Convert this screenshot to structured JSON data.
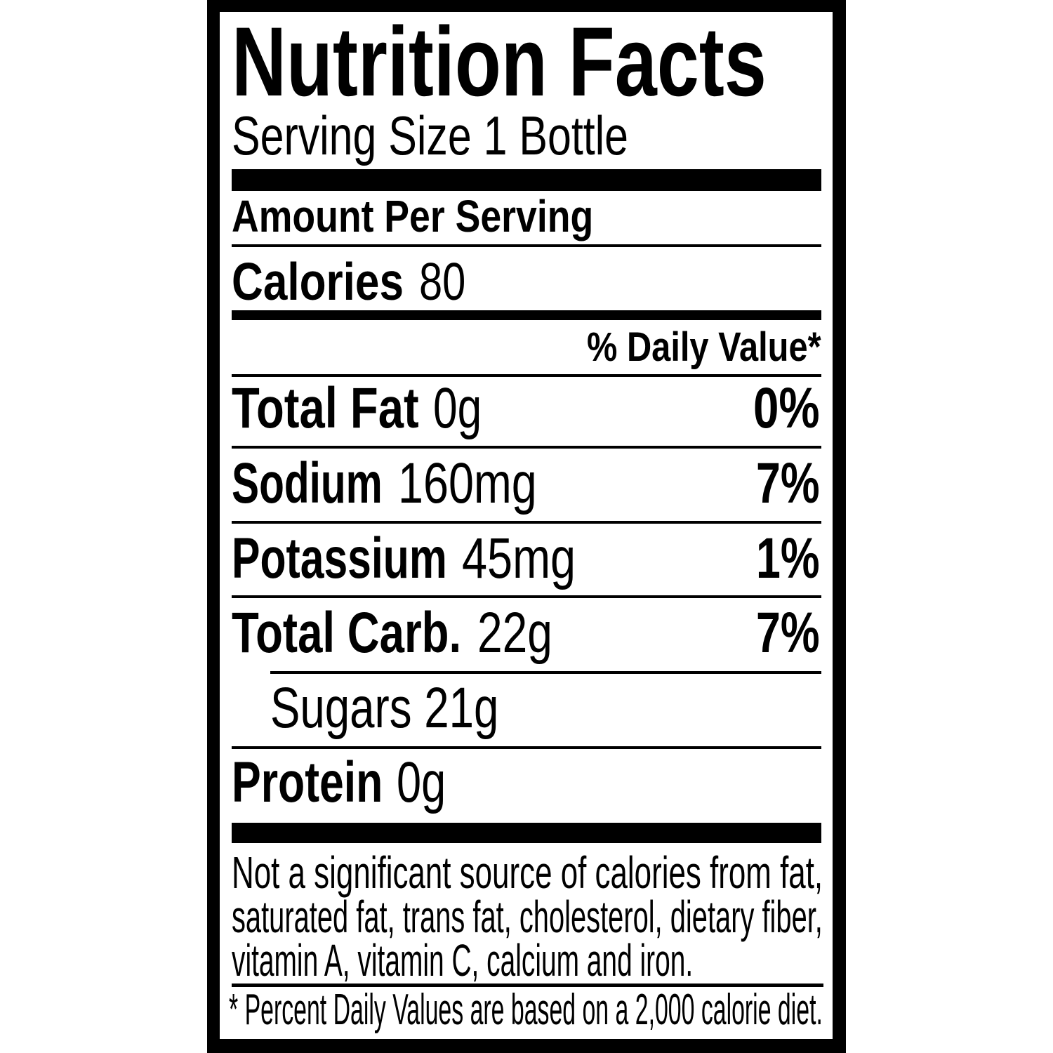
{
  "label": {
    "title": "Nutrition Facts",
    "serving_size": "Serving Size 1 Bottle",
    "amount_per_serving": "Amount Per Serving",
    "calories": {
      "label": "Calories",
      "value": "80"
    },
    "daily_value_header": "% Daily Value*",
    "nutrients": [
      {
        "label": "Total Fat",
        "amount": "0g",
        "dv": "0%"
      },
      {
        "label": "Sodium",
        "amount": "160mg",
        "dv": "7%"
      },
      {
        "label": "Potassium",
        "amount": "45mg",
        "dv": "1%"
      },
      {
        "label": "Total Carb.",
        "amount": "22g",
        "dv": "7%"
      }
    ],
    "sugars": "Sugars 21g",
    "protein": {
      "label": "Protein",
      "amount": "0g"
    },
    "footnote_lines": [
      "Not a significant source of calories from fat,",
      "saturated fat, trans fat, cholesterol, dietary fiber,",
      "vitamin A, vitamin C, calcium and iron."
    ],
    "daily_value_note": "* Percent Daily Values are based on a 2,000 calorie diet."
  }
}
